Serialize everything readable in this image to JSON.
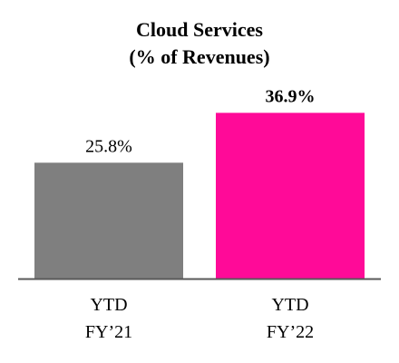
{
  "chart_data": {
    "type": "bar",
    "title": "Cloud Services",
    "subtitle": "(% of Revenues)",
    "categories": [
      [
        "YTD",
        "FY’21"
      ],
      [
        "YTD",
        "FY’22"
      ]
    ],
    "values": [
      25.8,
      36.9
    ],
    "value_labels": [
      "25.8%",
      "36.9%"
    ],
    "value_label_bold": [
      false,
      true
    ],
    "colors": [
      "#7f7f7f",
      "#ff0a98"
    ],
    "axis_color": "#595959",
    "ylim": [
      0,
      40
    ],
    "grid": false,
    "legend": "none"
  }
}
